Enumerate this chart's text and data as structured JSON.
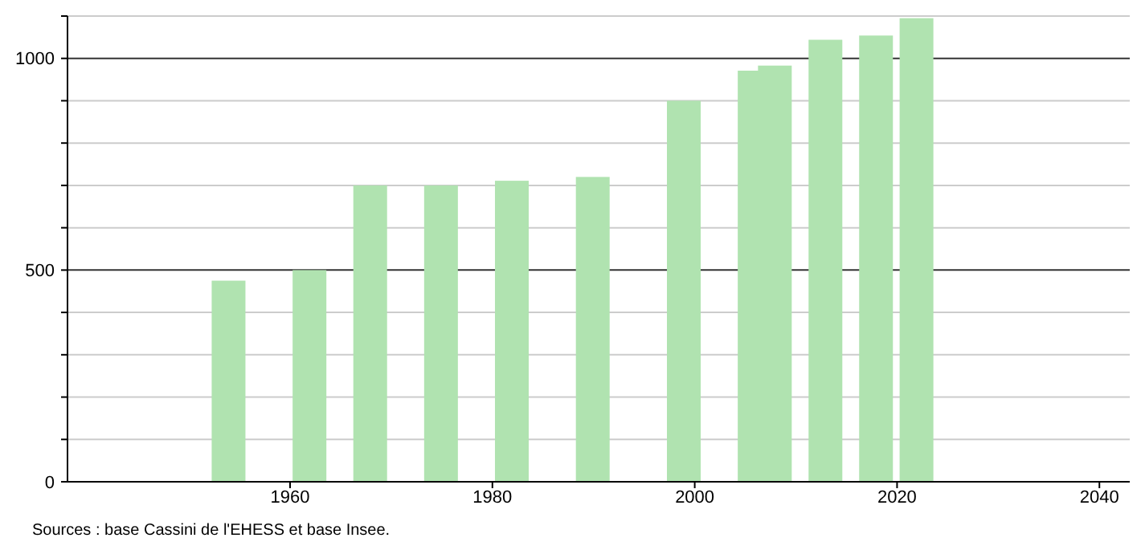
{
  "chart_data": {
    "type": "bar",
    "x": [
      1954,
      1962,
      1968,
      1975,
      1982,
      1990,
      1999,
      2006,
      2008,
      2013,
      2018,
      2022
    ],
    "values": [
      475,
      500,
      700,
      700,
      711,
      720,
      900,
      971,
      983,
      1044,
      1054,
      1095
    ],
    "color": "#b0e3b0",
    "xlim": [
      1938,
      2043
    ],
    "xticks": [
      1960,
      1980,
      2000,
      2020,
      2040
    ],
    "ylim": [
      0,
      1100
    ],
    "yticks": [
      0,
      {
        "value": 100,
        "label": null
      },
      {
        "value": 200,
        "label": null
      },
      {
        "value": 300,
        "label": null
      },
      {
        "value": 400,
        "label": null
      },
      500,
      {
        "value": 600,
        "label": null
      },
      {
        "value": 700,
        "label": null
      },
      {
        "value": 800,
        "label": null
      },
      {
        "value": 900,
        "label": null
      },
      1000,
      {
        "value": 1100,
        "label": null
      }
    ],
    "grid": "y",
    "annotations": [
      "Sources : base Cassini de l'EHESS et base Insee."
    ]
  }
}
